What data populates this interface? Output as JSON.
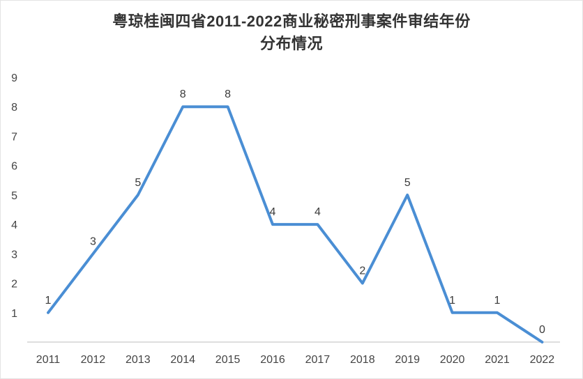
{
  "chart_data": {
    "type": "line",
    "title_line1": "粤琼桂闽四省2011-2022商业秘密刑事案件审结年份",
    "title_line2": "分布情况",
    "categories": [
      "2011",
      "2012",
      "2013",
      "2014",
      "2015",
      "2016",
      "2017",
      "2018",
      "2019",
      "2020",
      "2021",
      "2022"
    ],
    "values": [
      1,
      3,
      5,
      8,
      8,
      4,
      4,
      2,
      5,
      1,
      1,
      0
    ],
    "data_labels": [
      "1",
      "3",
      "5",
      "8",
      "8",
      "4",
      "4",
      "2",
      "5",
      "1",
      "1",
      "0"
    ],
    "yticks": [
      1,
      2,
      3,
      4,
      5,
      6,
      7,
      8,
      9
    ],
    "ylim": [
      0,
      9
    ],
    "xlabel": "",
    "ylabel": "",
    "grid": false,
    "legend": "none",
    "line_color": "#4a8ed4",
    "axis_line_color": "#c9c9c9",
    "text_color": "#444444"
  }
}
